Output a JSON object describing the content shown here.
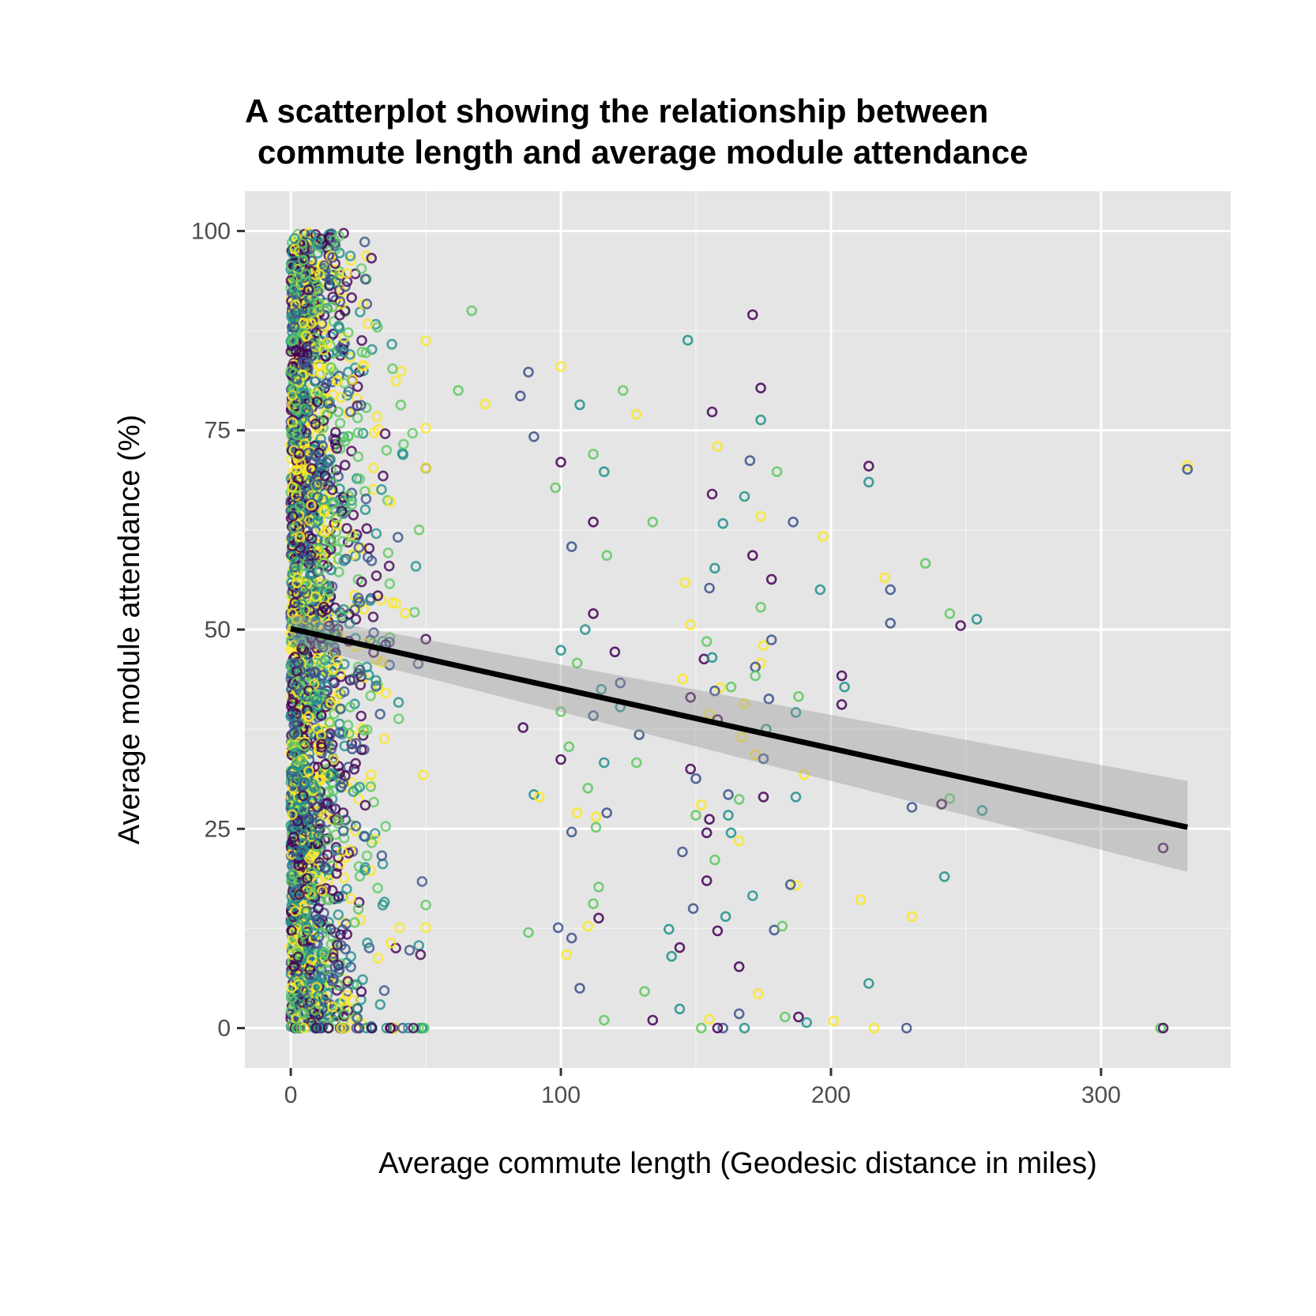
{
  "chart_data": {
    "type": "scatter",
    "title_lines": [
      "A scatterplot showing the relationship between",
      "commute length and average module attendance"
    ],
    "xlabel": "Average commute length (Geodesic distance in miles)",
    "ylabel": "Average module attendance (%)",
    "xlim": [
      -17,
      348
    ],
    "ylim": [
      -5,
      105
    ],
    "x_ticks": [
      0,
      100,
      200,
      300
    ],
    "x_tick_labels": [
      "0",
      "100",
      "200",
      "300"
    ],
    "y_ticks": [
      0,
      25,
      50,
      75,
      100
    ],
    "y_tick_labels": [
      "0",
      "25",
      "50",
      "75",
      "100"
    ],
    "grid": true,
    "legend": "none",
    "point_palette": [
      "#440154",
      "#3b528b",
      "#21918c",
      "#5ec962",
      "#fde725"
    ],
    "dense_cluster": {
      "x_range": [
        0,
        50
      ],
      "y_range": [
        0,
        100
      ],
      "note": "thousands of overlapping points concentrated at short commutes"
    },
    "points": [
      [
        67,
        90
      ],
      [
        171,
        89.5
      ],
      [
        147,
        86.3
      ],
      [
        100,
        83
      ],
      [
        88,
        82.3
      ],
      [
        123,
        80
      ],
      [
        174,
        80.3
      ],
      [
        107,
        78.2
      ],
      [
        72,
        78.3
      ],
      [
        85,
        79.3
      ],
      [
        62,
        80
      ],
      [
        156,
        77.3
      ],
      [
        174,
        76.3
      ],
      [
        128,
        77
      ],
      [
        90,
        74.2
      ],
      [
        112,
        72
      ],
      [
        100,
        71
      ],
      [
        116,
        69.8
      ],
      [
        158,
        73
      ],
      [
        170,
        71.2
      ],
      [
        180,
        69.8
      ],
      [
        214,
        70.5
      ],
      [
        214,
        68.5
      ],
      [
        332,
        70.6
      ],
      [
        332,
        70.1
      ],
      [
        98,
        67.8
      ],
      [
        156,
        67
      ],
      [
        168,
        66.7
      ],
      [
        174,
        64.2
      ],
      [
        186,
        63.5
      ],
      [
        134,
        63.5
      ],
      [
        112,
        63.5
      ],
      [
        160,
        63.3
      ],
      [
        197,
        61.7
      ],
      [
        104,
        60.4
      ],
      [
        117,
        59.3
      ],
      [
        171,
        59.3
      ],
      [
        196,
        55
      ],
      [
        220,
        56.5
      ],
      [
        222,
        55
      ],
      [
        235,
        58.3
      ],
      [
        178,
        56.3
      ],
      [
        157,
        57.7
      ],
      [
        146,
        55.9
      ],
      [
        155,
        55.2
      ],
      [
        174,
        52.8
      ],
      [
        112,
        52
      ],
      [
        109,
        50
      ],
      [
        148,
        50.6
      ],
      [
        222,
        50.8
      ],
      [
        244,
        52
      ],
      [
        248,
        50.5
      ],
      [
        254,
        51.3
      ],
      [
        175,
        48
      ],
      [
        178,
        48.7
      ],
      [
        154,
        48.5
      ],
      [
        120,
        47.2
      ],
      [
        100,
        47.4
      ],
      [
        174,
        45.8
      ],
      [
        172,
        45.3
      ],
      [
        106,
        45.8
      ],
      [
        153,
        46.3
      ],
      [
        156,
        46.5
      ],
      [
        145,
        43.8
      ],
      [
        122,
        43.3
      ],
      [
        172,
        44.2
      ],
      [
        204,
        44.2
      ],
      [
        205,
        42.8
      ],
      [
        159,
        42.7
      ],
      [
        157,
        42.3
      ],
      [
        163,
        42.8
      ],
      [
        148,
        41.5
      ],
      [
        115,
        42.5
      ],
      [
        168,
        40.7
      ],
      [
        177,
        41.3
      ],
      [
        188,
        41.6
      ],
      [
        204,
        40.6
      ],
      [
        187,
        39.6
      ],
      [
        155,
        39.4
      ],
      [
        112,
        39.2
      ],
      [
        100,
        39.7
      ],
      [
        158,
        38.7
      ],
      [
        176,
        37.5
      ],
      [
        167,
        36.5
      ],
      [
        129,
        36.8
      ],
      [
        103,
        35.3
      ],
      [
        86,
        37.7
      ],
      [
        122,
        40.3
      ],
      [
        172,
        34.3
      ],
      [
        175,
        33.8
      ],
      [
        128,
        33.3
      ],
      [
        148,
        32.5
      ],
      [
        116,
        33.3
      ],
      [
        190,
        31.8
      ],
      [
        150,
        31.3
      ],
      [
        110,
        30.1
      ],
      [
        100,
        33.7
      ],
      [
        90,
        29.3
      ],
      [
        92,
        29
      ],
      [
        162,
        29.3
      ],
      [
        166,
        28.7
      ],
      [
        175,
        29
      ],
      [
        187,
        29
      ],
      [
        152,
        28
      ],
      [
        230,
        27.7
      ],
      [
        244,
        28.8
      ],
      [
        241,
        28.1
      ],
      [
        256,
        27.3
      ],
      [
        113,
        26.5
      ],
      [
        117,
        27
      ],
      [
        150,
        26.7
      ],
      [
        155,
        26.2
      ],
      [
        162,
        26.7
      ],
      [
        106,
        27
      ],
      [
        104,
        24.6
      ],
      [
        113,
        25.2
      ],
      [
        154,
        24.5
      ],
      [
        163,
        24.5
      ],
      [
        166,
        23.5
      ],
      [
        145,
        22.1
      ],
      [
        157,
        21.1
      ],
      [
        323,
        22.6
      ],
      [
        242,
        19
      ],
      [
        187,
        17.9
      ],
      [
        185,
        18
      ],
      [
        114,
        17.7
      ],
      [
        154,
        18.5
      ],
      [
        171,
        16.6
      ],
      [
        211,
        16.1
      ],
      [
        149,
        15
      ],
      [
        112,
        15.6
      ],
      [
        114,
        13.8
      ],
      [
        161,
        14
      ],
      [
        230,
        14
      ],
      [
        179,
        12.3
      ],
      [
        182,
        12.8
      ],
      [
        158,
        12.2
      ],
      [
        140,
        12.4
      ],
      [
        110,
        12.8
      ],
      [
        99,
        12.6
      ],
      [
        88,
        12
      ],
      [
        144,
        10.1
      ],
      [
        141,
        9
      ],
      [
        102,
        9.2
      ],
      [
        104,
        11.3
      ],
      [
        131,
        4.6
      ],
      [
        166,
        7.7
      ],
      [
        214,
        5.6
      ],
      [
        173,
        4.3
      ],
      [
        107,
        5
      ],
      [
        116,
        1
      ],
      [
        134,
        1
      ],
      [
        144,
        2.4
      ],
      [
        155,
        1.1
      ],
      [
        166,
        1.8
      ],
      [
        183,
        1.4
      ],
      [
        188,
        1.4
      ],
      [
        191,
        0.7
      ],
      [
        201,
        0.9
      ],
      [
        160,
        0
      ],
      [
        152,
        0
      ],
      [
        158,
        0
      ],
      [
        168,
        0
      ],
      [
        216,
        0
      ],
      [
        228,
        0
      ],
      [
        322,
        0
      ],
      [
        323,
        0
      ]
    ],
    "trend_line": {
      "type": "linear",
      "x": [
        0,
        332
      ],
      "y": [
        50.1,
        25.2
      ],
      "ci_upper": [
        51.9,
        31
      ],
      "ci_lower": [
        48.3,
        19.6
      ]
    }
  }
}
